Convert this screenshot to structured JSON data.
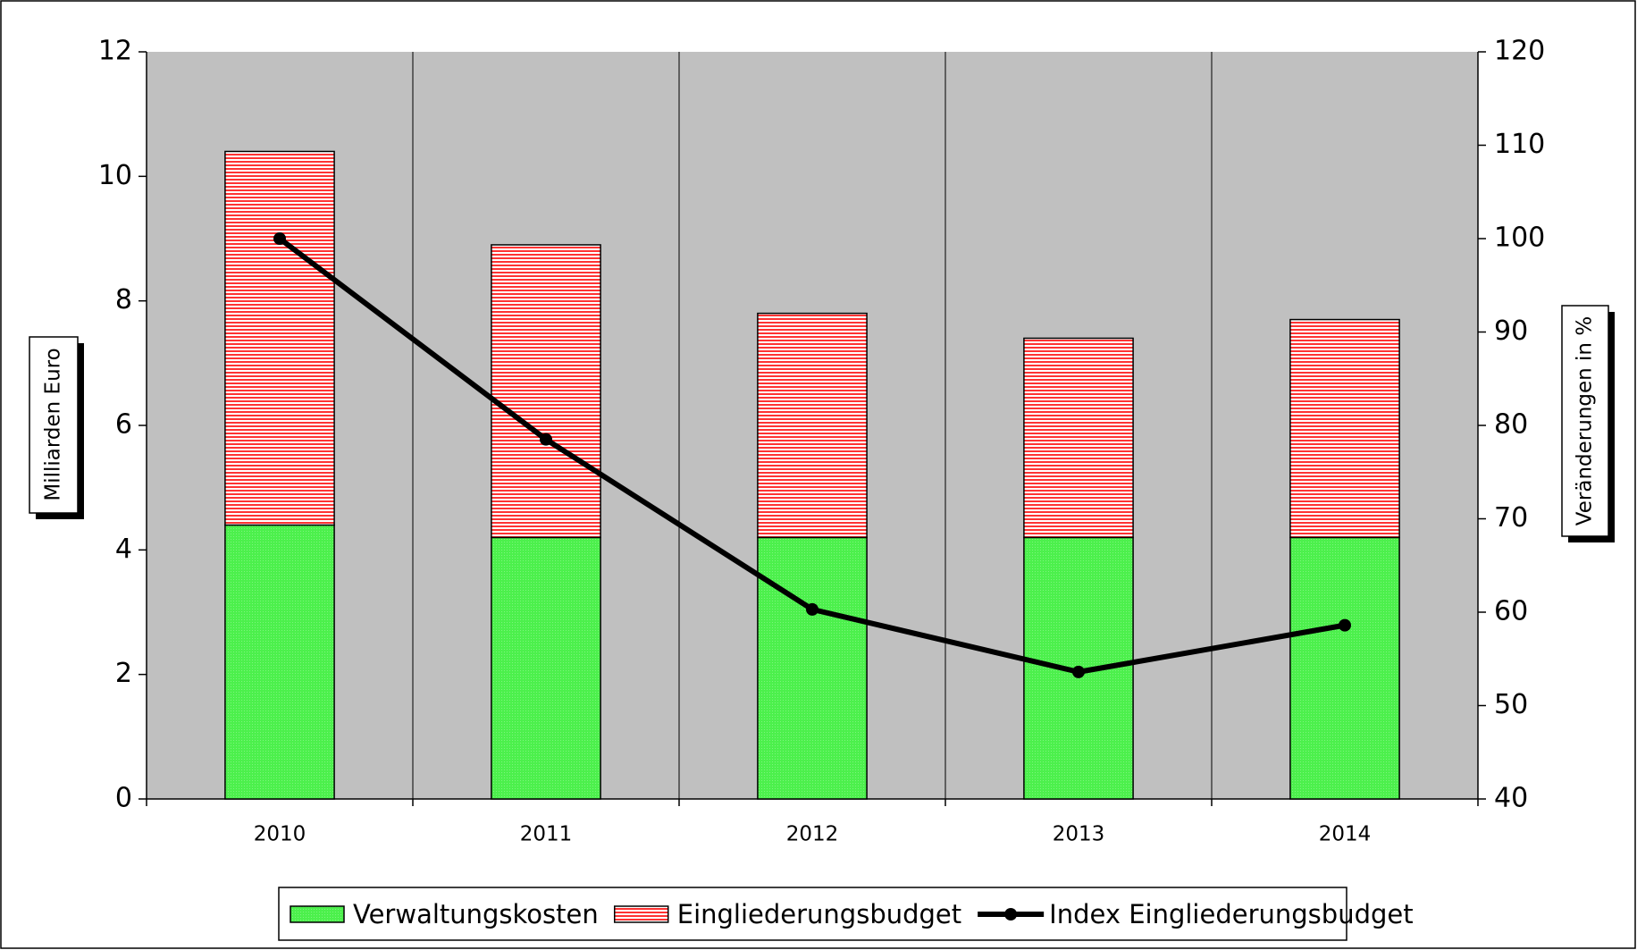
{
  "chart_data": {
    "type": "bar",
    "stacked": true,
    "categories": [
      "2010",
      "2011",
      "2012",
      "2013",
      "2014"
    ],
    "y_label": "Milliarden Euro",
    "y2_label": "Veränderungen in %",
    "ylim": [
      0,
      12
    ],
    "yticks": [
      0,
      2,
      4,
      6,
      8,
      10,
      12
    ],
    "y2lim": [
      40,
      120
    ],
    "y2ticks": [
      40,
      50,
      60,
      70,
      80,
      90,
      100,
      110,
      120
    ],
    "grid": false,
    "legend": "bottom",
    "series": [
      {
        "name": "Verwaltungskosten",
        "color": "#4cf04c",
        "values": [
          4.4,
          4.2,
          4.2,
          4.2,
          4.2
        ]
      },
      {
        "name": "Eingliederungsbudget",
        "color": "#ff3333",
        "values": [
          6.0,
          4.7,
          3.6,
          3.2,
          3.5
        ]
      },
      {
        "name": "Index Eingliederungsbudget",
        "color": "#000000",
        "type": "line",
        "axis": "y2",
        "values": [
          100,
          78.5,
          60.3,
          53.6,
          58.6
        ]
      }
    ]
  }
}
